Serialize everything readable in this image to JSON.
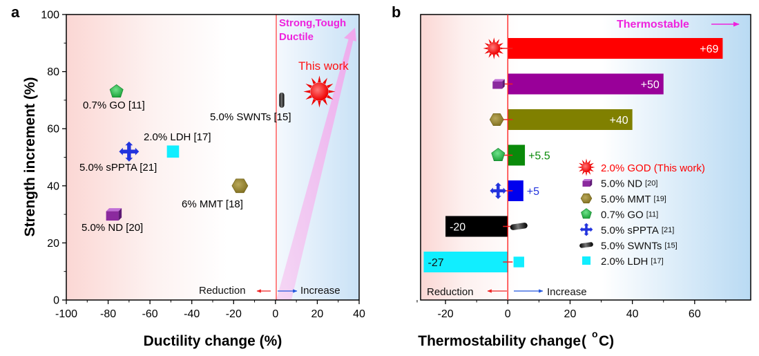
{
  "colors": {
    "red": "#ff0000",
    "magenta": "#ee22dd",
    "blue": "#2233dd",
    "purple": "#8b2a9e",
    "olive": "#8a7a1a",
    "green": "#1eaa4a",
    "black": "#111111",
    "cyan": "#11eeff",
    "bar_purple": "#990099",
    "bar_olive": "#808000",
    "bar_green": "#0a8a0a",
    "bar_blue": "#0000ee"
  },
  "panel_a": {
    "label": "a",
    "corner_text_line1": "Strong,Tough",
    "corner_text_line2": "Ductile",
    "this_work_label": "This work",
    "reduction_label": "Reduction",
    "increase_label": "Increase"
  },
  "panel_b": {
    "label": "b",
    "thermostable_label": "Thermostable",
    "reduction_label": "Reduction",
    "increase_label": "Increase",
    "legend": [
      {
        "main": "2.0% GOD (This work)",
        "ref": "",
        "marker": "sun-icon",
        "color": "#ff0000",
        "text_color": "#ff0000"
      },
      {
        "main": "5.0% ND",
        "ref": "[20]",
        "marker": "cube-icon",
        "color": "#8b2a9e",
        "text_color": "#111111"
      },
      {
        "main": "5.0% MMT",
        "ref": "[19]",
        "marker": "hexagon-icon",
        "color": "#8a7a1a",
        "text_color": "#111111"
      },
      {
        "main": "0.7% GO",
        "ref": "[11]",
        "marker": "pentagon-icon",
        "color": "#1eaa4a",
        "text_color": "#111111"
      },
      {
        "main": "5.0% sPPTA",
        "ref": "[21]",
        "marker": "cross-arrows-icon",
        "color": "#2233dd",
        "text_color": "#111111"
      },
      {
        "main": "5.0% SWNTs",
        "ref": "[15]",
        "marker": "capsule-icon",
        "color": "#111111",
        "text_color": "#111111"
      },
      {
        "main": "2.0% LDH",
        "ref": "[17]",
        "marker": "square-icon",
        "color": "#11eeff",
        "text_color": "#111111"
      }
    ]
  },
  "chart_data": [
    {
      "type": "scatter",
      "title": "",
      "xlabel": "Ductility change (%)",
      "ylabel": "Strength increment (%)",
      "xlim": [
        -100,
        40
      ],
      "ylim": [
        0,
        100
      ],
      "xticks": [
        "-100",
        "-80",
        "-60",
        "-40",
        "-20",
        "0",
        "20",
        "40"
      ],
      "yticks": [
        "0",
        "20",
        "40",
        "60",
        "80",
        "100"
      ],
      "points": [
        {
          "name": "This work",
          "x": 21,
          "y": 73,
          "marker": "sun",
          "color": "#ff0000"
        },
        {
          "name": "5.0% SWNTs [15]",
          "x": 3,
          "y": 70,
          "marker": "capsule",
          "color": "#111111"
        },
        {
          "name": "0.7% GO [11]",
          "x": -76,
          "y": 73,
          "marker": "pentagon",
          "color": "#1eaa4a"
        },
        {
          "name": "2.0% LDH [17]",
          "x": -49,
          "y": 52,
          "marker": "square",
          "color": "#11eeff"
        },
        {
          "name": "5.0% sPPTA [21]",
          "x": -70,
          "y": 52,
          "marker": "cross",
          "color": "#2233dd"
        },
        {
          "name": "6% MMT [18]",
          "x": -17,
          "y": 40,
          "marker": "hexagon",
          "color": "#8a7a1a"
        },
        {
          "name": "5.0% ND [20]",
          "x": -78,
          "y": 30,
          "marker": "cube",
          "color": "#8b2a9e"
        }
      ]
    },
    {
      "type": "bar",
      "orientation": "horizontal",
      "title": "",
      "xlabel": "Thermostability change(°C)",
      "xlabel_main": "Thermostability change",
      "xlabel_unit_deg": "o",
      "xlabel_unit_c": "C)",
      "xlabel_paren": "(",
      "xlim": [
        -28,
        78
      ],
      "xticks": [
        "-20",
        "0",
        "20",
        "40",
        "60"
      ],
      "categories": [
        "2.0% GOD (This work)",
        "5.0% ND [20]",
        "5.0% MMT [19]",
        "0.7% GO [11]",
        "5.0% sPPTA [21]",
        "5.0% SWNTs [15]",
        "2.0% LDH [17]"
      ],
      "values": [
        69,
        50,
        40,
        5.5,
        5,
        -20,
        -27
      ],
      "value_labels": [
        "+69",
        "+50",
        "+40",
        "+5.5",
        "+5",
        "-20",
        "-27"
      ],
      "bar_colors": [
        "#ff0000",
        "#990099",
        "#808000",
        "#0a8a0a",
        "#0000ee",
        "#000000",
        "#11eeff"
      ]
    }
  ]
}
